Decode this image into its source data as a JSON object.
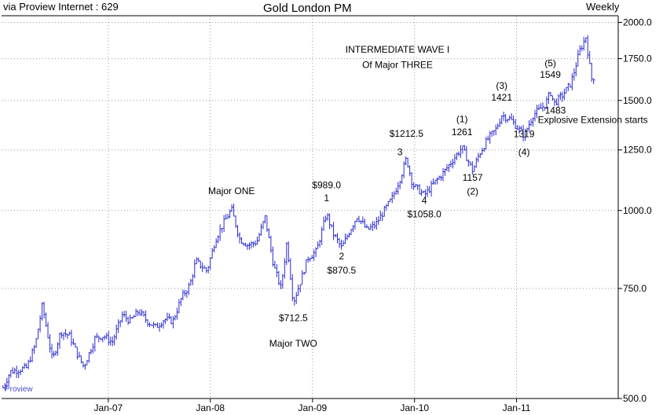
{
  "header": {
    "source": "via Proview Internet : 629",
    "title": "Gold London PM",
    "period": "Weekly"
  },
  "brand": "Proview",
  "colors": {
    "series": "#2a2ad0",
    "grid": "#9a9a9a",
    "axis": "#000000"
  },
  "chart_data": {
    "type": "line",
    "subtype": "weekly high-low bars",
    "title": "Gold London PM",
    "xlabel": "",
    "ylabel": "",
    "yscale": "log",
    "ylim": [
      500,
      2050
    ],
    "xlim": [
      "2005-12-15",
      "2011-12-31"
    ],
    "y_ticks": [
      500,
      750,
      1000,
      1250,
      1500,
      1750,
      2000
    ],
    "y_tick_labels": [
      "500.0",
      "750.0",
      "1000.0",
      "1250.0",
      "1500.0",
      "1750.0",
      "2000.0"
    ],
    "x_ticks": [
      "2007-01-01",
      "2008-01-01",
      "2009-01-01",
      "2010-01-01",
      "2011-01-01"
    ],
    "x_tick_labels": [
      "Jan-07",
      "Jan-08",
      "Jan-09",
      "Jan-10",
      "Jan-11"
    ],
    "grid": true,
    "series": [
      {
        "points": [
          [
            "2005-12-20",
            520
          ],
          [
            "2006-01-15",
            552
          ],
          [
            "2006-02-15",
            556
          ],
          [
            "2006-03-15",
            560
          ],
          [
            "2006-04-15",
            610
          ],
          [
            "2006-05-10",
            705
          ],
          [
            "2006-06-15",
            575
          ],
          [
            "2006-07-15",
            640
          ],
          [
            "2006-08-15",
            630
          ],
          [
            "2006-09-15",
            585
          ],
          [
            "2006-10-05",
            562
          ],
          [
            "2006-11-15",
            625
          ],
          [
            "2006-12-15",
            630
          ],
          [
            "2007-01-15",
            615
          ],
          [
            "2007-02-20",
            680
          ],
          [
            "2007-03-20",
            665
          ],
          [
            "2007-04-20",
            690
          ],
          [
            "2007-05-20",
            665
          ],
          [
            "2007-06-20",
            650
          ],
          [
            "2007-07-20",
            670
          ],
          [
            "2007-08-20",
            665
          ],
          [
            "2007-09-20",
            725
          ],
          [
            "2007-10-20",
            760
          ],
          [
            "2007-11-10",
            830
          ],
          [
            "2007-12-20",
            800
          ],
          [
            "2008-01-20",
            900
          ],
          [
            "2008-02-15",
            950
          ],
          [
            "2008-03-17",
            1005
          ],
          [
            "2008-04-15",
            900
          ],
          [
            "2008-05-15",
            880
          ],
          [
            "2008-06-15",
            890
          ],
          [
            "2008-07-15",
            975
          ],
          [
            "2008-08-15",
            815
          ],
          [
            "2008-09-10",
            750
          ],
          [
            "2008-10-01",
            890
          ],
          [
            "2008-10-24",
            712.5
          ],
          [
            "2008-11-15",
            760
          ],
          [
            "2008-12-15",
            840
          ],
          [
            "2009-01-15",
            860
          ],
          [
            "2009-02-20",
            989
          ],
          [
            "2009-03-15",
            920
          ],
          [
            "2009-04-15",
            870.5
          ],
          [
            "2009-05-15",
            930
          ],
          [
            "2009-06-10",
            980
          ],
          [
            "2009-07-15",
            930
          ],
          [
            "2009-08-15",
            950
          ],
          [
            "2009-09-15",
            1000
          ],
          [
            "2009-10-15",
            1050
          ],
          [
            "2009-11-15",
            1140
          ],
          [
            "2009-12-03",
            1212.5
          ],
          [
            "2009-12-25",
            1100
          ],
          [
            "2010-02-05",
            1058
          ],
          [
            "2010-03-15",
            1110
          ],
          [
            "2010-04-15",
            1150
          ],
          [
            "2010-05-15",
            1200
          ],
          [
            "2010-06-20",
            1261
          ],
          [
            "2010-07-28",
            1157
          ],
          [
            "2010-08-20",
            1230
          ],
          [
            "2010-09-20",
            1300
          ],
          [
            "2010-10-20",
            1350
          ],
          [
            "2010-11-09",
            1421
          ],
          [
            "2010-12-10",
            1400
          ],
          [
            "2011-01-28",
            1319
          ],
          [
            "2011-03-01",
            1420
          ],
          [
            "2011-04-15",
            1480
          ],
          [
            "2011-05-02",
            1549
          ],
          [
            "2011-05-15",
            1483
          ],
          [
            "2011-06-15",
            1530
          ],
          [
            "2011-07-15",
            1600
          ],
          [
            "2011-08-15",
            1800
          ],
          [
            "2011-09-06",
            1895
          ],
          [
            "2011-09-26",
            1625
          ],
          [
            "2011-10-10",
            1640
          ]
        ]
      }
    ],
    "annotations": [
      {
        "text": "Major ONE",
        "x": "2008-03-17",
        "y": 1062
      },
      {
        "text": "$712.5",
        "x": "2008-10-24",
        "y": 665
      },
      {
        "text": "Major TWO",
        "x": "2008-10-24",
        "y": 605
      },
      {
        "text": "$989.0",
        "x": "2009-02-20",
        "y": 1085
      },
      {
        "text": "1",
        "x": "2009-02-20",
        "y": 1035
      },
      {
        "text": "2",
        "x": "2009-04-15",
        "y": 835
      },
      {
        "text": "$870.5",
        "x": "2009-04-15",
        "y": 792
      },
      {
        "text": "$1212.5",
        "x": "2009-12-03",
        "y": 1312
      },
      {
        "text": "3",
        "x": "2009-11-10",
        "y": 1225
      },
      {
        "text": "4",
        "x": "2010-02-05",
        "y": 1025
      },
      {
        "text": "$1058.0",
        "x": "2010-02-05",
        "y": 975
      },
      {
        "text": "(1)",
        "x": "2010-06-20",
        "y": 1385
      },
      {
        "text": "1261",
        "x": "2010-06-20",
        "y": 1320
      },
      {
        "text": "1157",
        "x": "2010-07-28",
        "y": 1115
      },
      {
        "text": "(2)",
        "x": "2010-07-28",
        "y": 1060
      },
      {
        "text": "(3)",
        "x": "2010-11-09",
        "y": 1565
      },
      {
        "text": "1421",
        "x": "2010-11-09",
        "y": 1500
      },
      {
        "text": "1319",
        "x": "2011-01-28",
        "y": 1310
      },
      {
        "text": "(4)",
        "x": "2011-01-28",
        "y": 1225
      },
      {
        "text": "(5)",
        "x": "2011-05-02",
        "y": 1700
      },
      {
        "text": "1549",
        "x": "2011-05-02",
        "y": 1630
      },
      {
        "text": "1483",
        "x": "2011-05-20",
        "y": 1430
      },
      {
        "text": "INTERMEDIATE WAVE I",
        "x": "2009-11-01",
        "y": 1790
      },
      {
        "text": "Of Major THREE",
        "x": "2009-11-01",
        "y": 1690
      },
      {
        "text": "Explosive Extension starts",
        "x": "2011-10-01",
        "y": 1380
      }
    ]
  }
}
